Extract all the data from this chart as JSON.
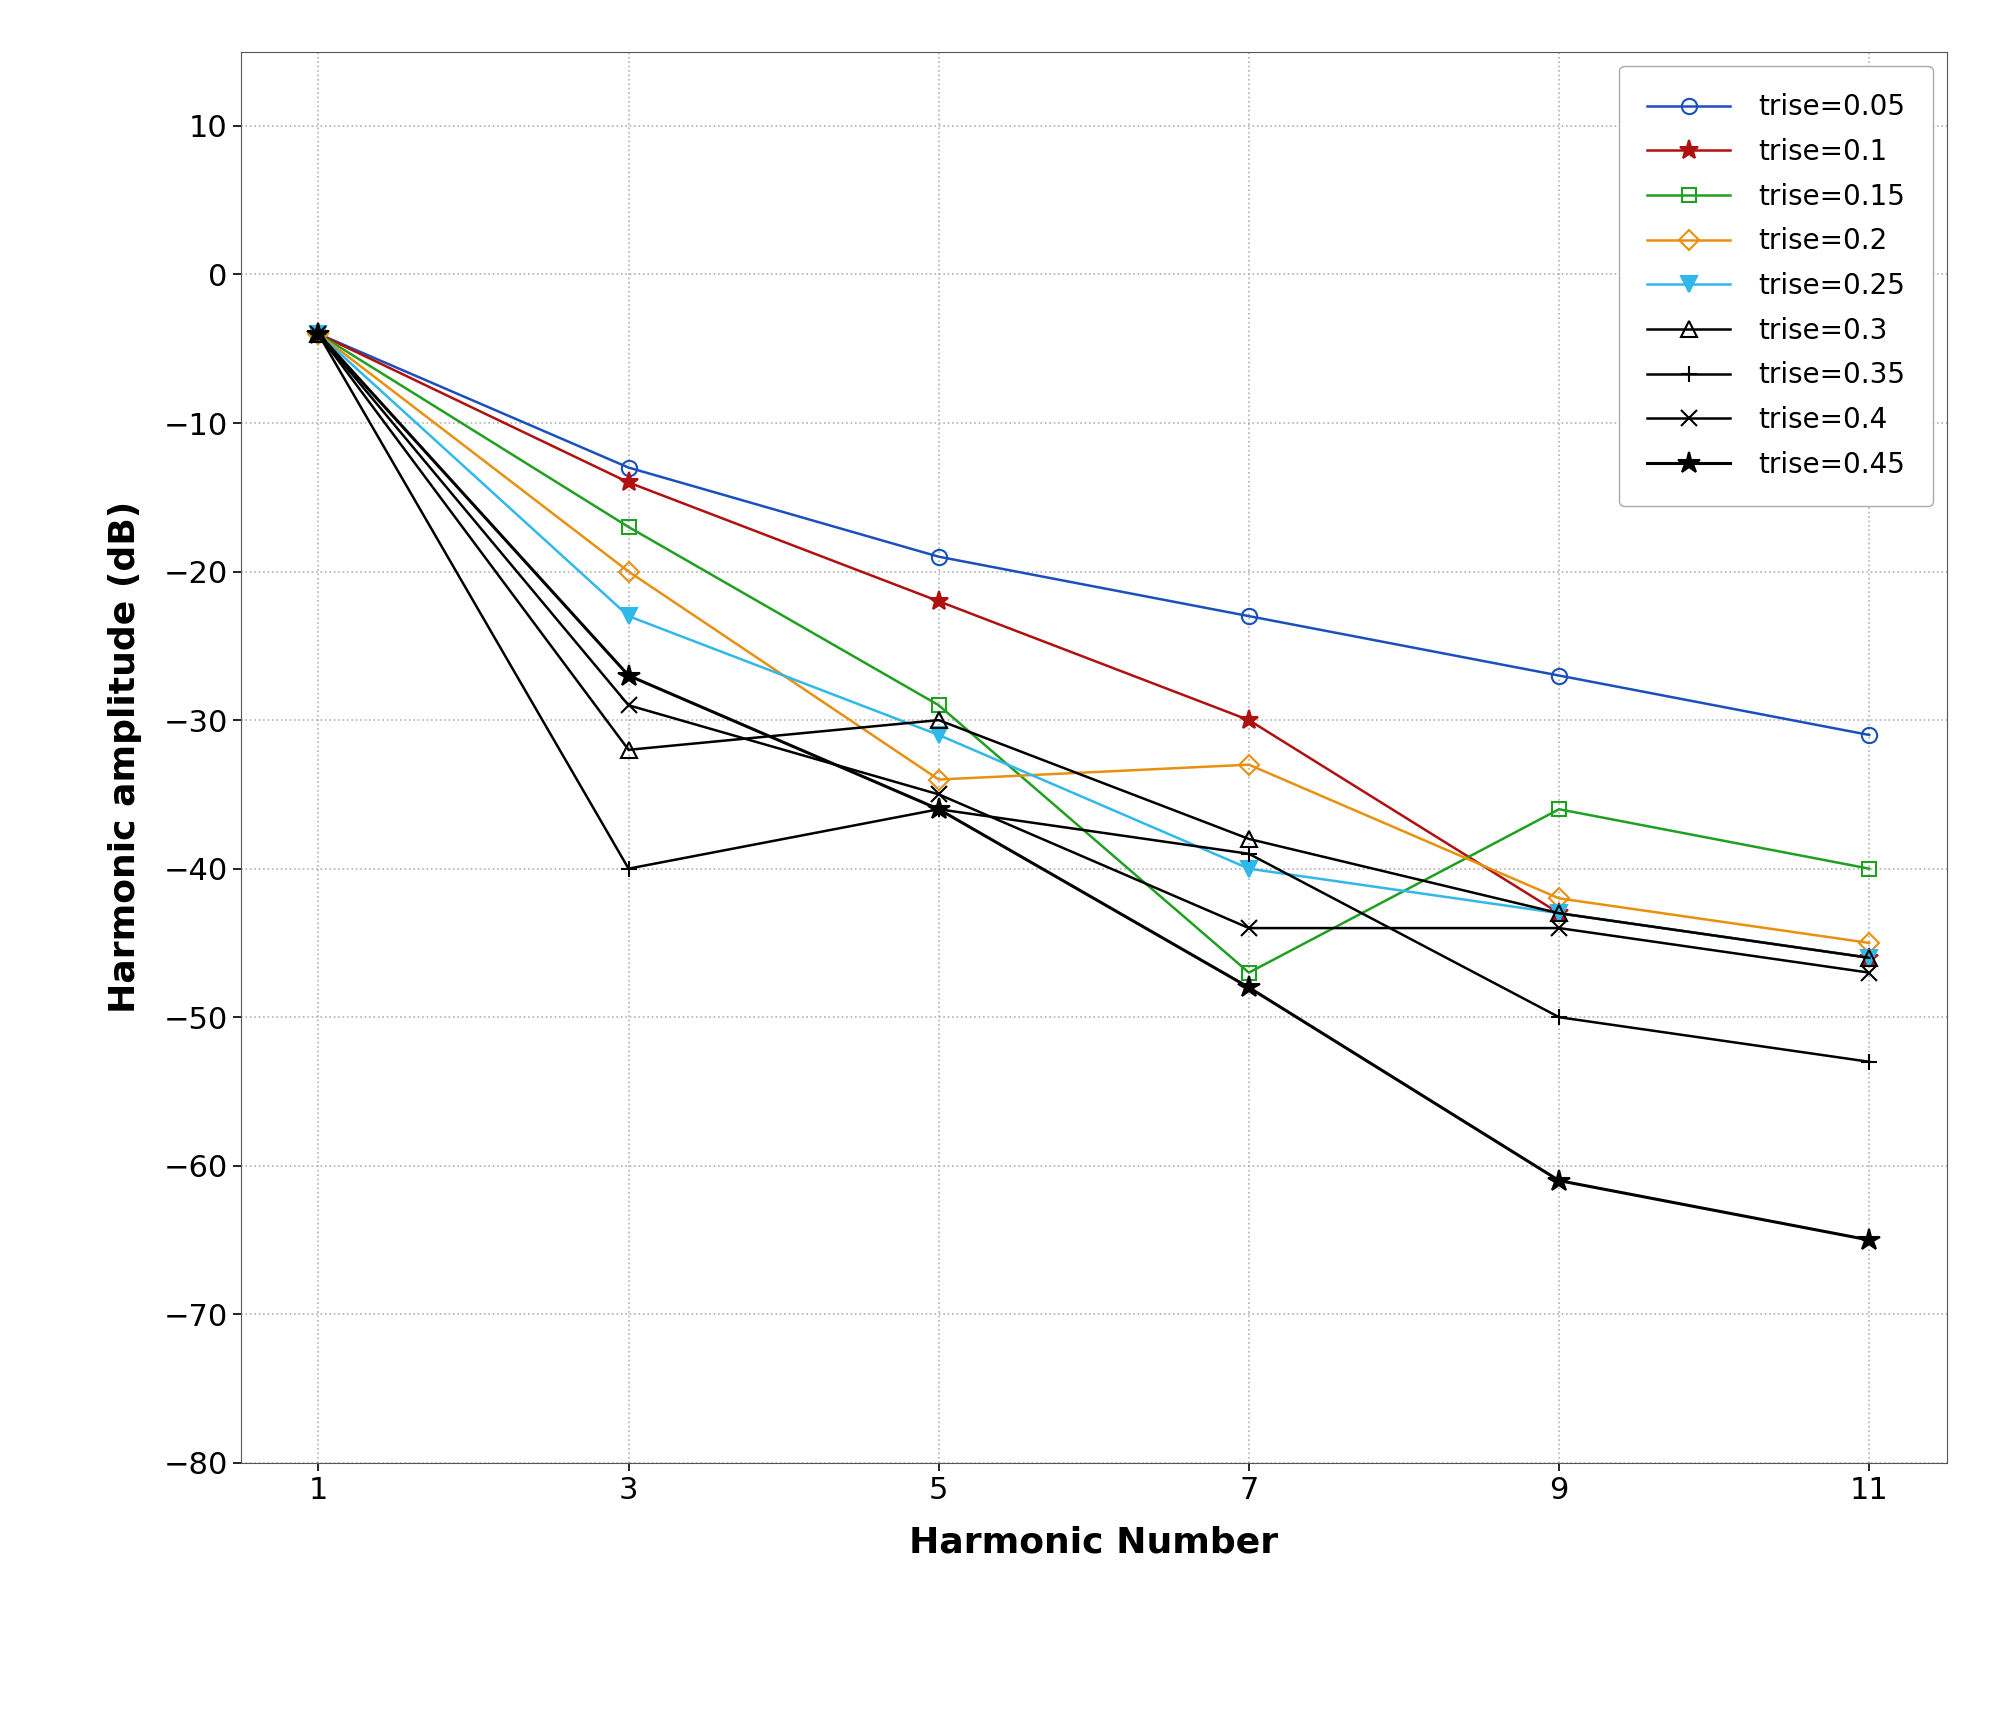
{
  "x": [
    1,
    3,
    5,
    7,
    9,
    11
  ],
  "series": [
    {
      "label": "trise=0.05",
      "color": "#1a4fbd",
      "marker": "o",
      "markerfacecolor": "none",
      "markersize": 11,
      "linewidth": 1.8,
      "values": [
        -4,
        -13,
        -19,
        -23,
        -27,
        -31
      ]
    },
    {
      "label": "trise=0.1",
      "color": "#b01010",
      "marker": "*",
      "markerfacecolor": "#b01010",
      "markersize": 14,
      "linewidth": 1.8,
      "values": [
        -4,
        -14,
        -22,
        -30,
        -43,
        -46
      ]
    },
    {
      "label": "trise=0.15",
      "color": "#20a020",
      "marker": "s",
      "markerfacecolor": "none",
      "markersize": 10,
      "linewidth": 1.8,
      "values": [
        -4,
        -17,
        -29,
        -47,
        -36,
        -40
      ]
    },
    {
      "label": "trise=0.2",
      "color": "#e89010",
      "marker": "D",
      "markerfacecolor": "none",
      "markersize": 10,
      "linewidth": 1.8,
      "values": [
        -4,
        -20,
        -34,
        -33,
        -42,
        -45
      ]
    },
    {
      "label": "trise=0.25",
      "color": "#30b8e8",
      "marker": "v",
      "markerfacecolor": "#30b8e8",
      "markersize": 11,
      "linewidth": 1.8,
      "values": [
        -4,
        -23,
        -31,
        -40,
        -43,
        -46
      ]
    },
    {
      "label": "trise=0.3",
      "color": "#000000",
      "marker": "^",
      "markerfacecolor": "none",
      "markersize": 11,
      "linewidth": 1.8,
      "values": [
        -4,
        -32,
        -30,
        -38,
        -43,
        -46
      ]
    },
    {
      "label": "trise=0.35",
      "color": "#000000",
      "marker": "+",
      "markerfacecolor": "#000000",
      "markersize": 12,
      "linewidth": 1.8,
      "values": [
        -4,
        -40,
        -36,
        -39,
        -50,
        -53
      ]
    },
    {
      "label": "trise=0.4",
      "color": "#000000",
      "marker": "x",
      "markerfacecolor": "#000000",
      "markersize": 11,
      "linewidth": 1.8,
      "values": [
        -4,
        -29,
        -35,
        -44,
        -44,
        -47
      ]
    },
    {
      "label": "trise=0.45",
      "color": "#000000",
      "marker": "*",
      "markerfacecolor": "#000000",
      "markersize": 16,
      "linewidth": 2.2,
      "values": [
        -4,
        -27,
        -36,
        -48,
        -61,
        -65
      ]
    }
  ],
  "xlabel": "Harmonic Number",
  "ylabel": "Harmonic amplitude (dB)",
  "xlim": [
    0.5,
    11.5
  ],
  "ylim": [
    -80,
    15
  ],
  "xticks": [
    1,
    3,
    5,
    7,
    9,
    11
  ],
  "yticks": [
    -80,
    -70,
    -60,
    -50,
    -40,
    -30,
    -20,
    -10,
    0,
    10
  ],
  "background_color": "#ffffff",
  "xlabel_fontsize": 26,
  "ylabel_fontsize": 26,
  "tick_fontsize": 22,
  "legend_fontsize": 20
}
